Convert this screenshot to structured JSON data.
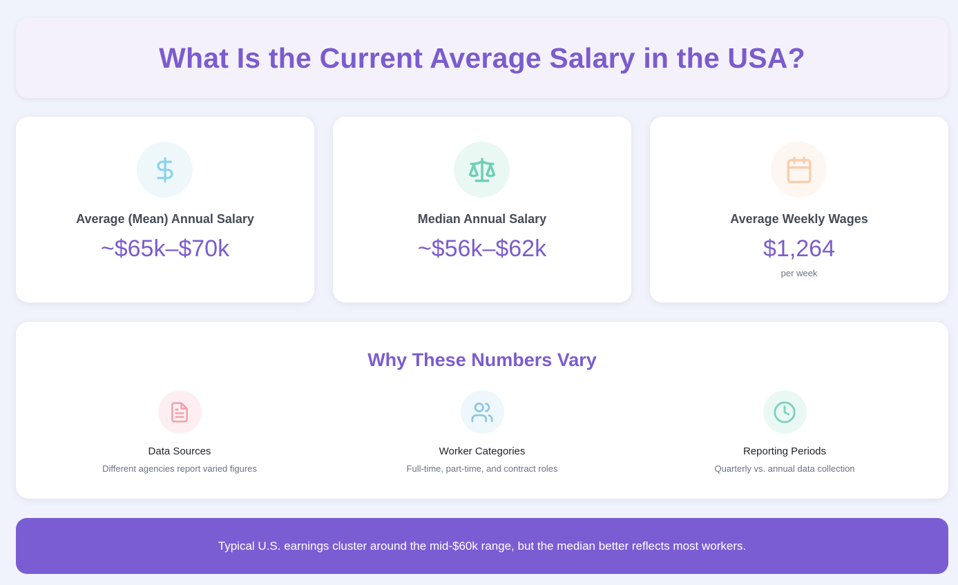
{
  "header": {
    "title": "What Is the Current Average Salary in the USA?"
  },
  "stats": [
    {
      "icon": "dollar-icon",
      "label": "Average (Mean) Annual Salary",
      "value": "~$65k–$70k"
    },
    {
      "icon": "scale-icon",
      "label": "Median Annual Salary",
      "value": "~$56k–$62k"
    },
    {
      "icon": "calendar-icon",
      "label": "Average Weekly Wages",
      "value": "$1,264",
      "sub": "per week"
    }
  ],
  "variation": {
    "title": "Why These Numbers Vary",
    "factors": [
      {
        "icon": "document-icon",
        "title": "Data Sources",
        "desc": "Different agencies report varied figures"
      },
      {
        "icon": "users-icon",
        "title": "Worker Categories",
        "desc": "Full-time, part-time, and contract roles"
      },
      {
        "icon": "clock-icon",
        "title": "Reporting Periods",
        "desc": "Quarterly vs. annual data collection"
      }
    ]
  },
  "banner": {
    "text": "Typical U.S. earnings cluster around the mid-$60k range, but the median better reflects most workers."
  },
  "colors": {
    "accent": "#7b5ccd",
    "banner": "#7a5dd3",
    "dollar": "#8fd3ea",
    "scale": "#6fcfb8",
    "calendar": "#f7cfae",
    "document": "#f2a3ad",
    "users": "#8fc7e3",
    "clock": "#7fd1bf"
  }
}
